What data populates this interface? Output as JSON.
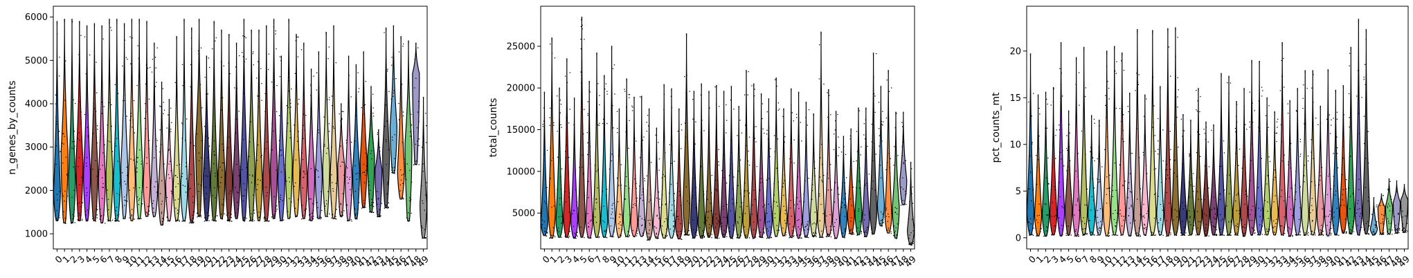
{
  "chart_data": [
    {
      "type": "violin",
      "ylabel": "n_genes_by_counts",
      "categories": [
        "0",
        "1",
        "2",
        "3",
        "4",
        "5",
        "6",
        "7",
        "8",
        "9",
        "10",
        "11",
        "12",
        "13",
        "14",
        "15",
        "16",
        "17",
        "18",
        "19",
        "20",
        "21",
        "22",
        "23",
        "24",
        "25",
        "26",
        "27",
        "28",
        "29",
        "30",
        "31",
        "32",
        "33",
        "34",
        "35",
        "36",
        "37",
        "38",
        "39",
        "40",
        "41",
        "42",
        "43",
        "44",
        "45",
        "46",
        "47",
        "48",
        "49"
      ],
      "ylim": [
        650,
        6250
      ],
      "yticks": [
        1000,
        2000,
        3000,
        4000,
        5000,
        6000
      ],
      "min": [
        1300,
        1250,
        1250,
        1300,
        1300,
        1300,
        1250,
        1300,
        1300,
        1350,
        1300,
        1350,
        1400,
        1400,
        1200,
        1300,
        1300,
        1300,
        1250,
        1400,
        1300,
        1300,
        1350,
        1300,
        1350,
        1300,
        1300,
        1300,
        1300,
        1350,
        1300,
        1350,
        1400,
        1350,
        1300,
        1350,
        1400,
        1350,
        1400,
        1300,
        1350,
        1600,
        1500,
        1400,
        1600,
        2400,
        1800,
        1300,
        2600,
        900
      ],
      "median": [
        2000,
        2900,
        2300,
        2700,
        2400,
        2500,
        2300,
        2400,
        2300,
        2600,
        2300,
        2500,
        2200,
        2100,
        2000,
        2200,
        2100,
        2100,
        2000,
        3200,
        2300,
        2300,
        2400,
        2300,
        2300,
        2500,
        2600,
        2300,
        2300,
        2600,
        2300,
        2700,
        2500,
        2300,
        2400,
        2400,
        2600,
        2400,
        2600,
        2300,
        2500,
        2700,
        2800,
        2500,
        2900,
        3500,
        2500,
        3100,
        4700,
        1700
      ],
      "max": [
        5900,
        5950,
        5950,
        5900,
        5800,
        5850,
        5800,
        5950,
        5950,
        5850,
        5950,
        5950,
        5900,
        5400,
        4500,
        4100,
        5550,
        5950,
        5750,
        5950,
        5100,
        5900,
        5700,
        5600,
        5400,
        5950,
        5700,
        5700,
        5800,
        5950,
        5100,
        5950,
        5600,
        5400,
        4800,
        5200,
        5650,
        5800,
        4000,
        5100,
        4900,
        5200,
        4400,
        3400,
        5750,
        5800,
        5550,
        5450,
        5400,
        4150
      ],
      "color": [
        "#1f77b4",
        "#ff7f0e",
        "#279e68",
        "#d62728",
        "#aa40fc",
        "#8c564b",
        "#e377c2",
        "#b5bd61",
        "#17becf",
        "#aec7e8",
        "#ffbb78",
        "#98df8a",
        "#ff9896",
        "#c5b0d5",
        "#c49c94",
        "#f7b6d2",
        "#dbdb8d",
        "#9edae5",
        "#ad494a",
        "#8c6d31",
        "#393b79",
        "#637939",
        "#8c6d31",
        "#843c39",
        "#7b4173",
        "#5254a3",
        "#8ca252",
        "#bd9e39",
        "#ad494a",
        "#a55194",
        "#6b6ecf",
        "#b5cf6b",
        "#e7ba52",
        "#d6616b",
        "#ce6dbd",
        "#9c9ede",
        "#cedb9c",
        "#e7cb94",
        "#e7969c",
        "#de9ed6",
        "#3182bd",
        "#e6550d",
        "#31a354",
        "#756bb1",
        "#636363",
        "#6baed6",
        "#fd8d3c",
        "#74c476",
        "#9e9ac8",
        "#969696"
      ]
    },
    {
      "type": "violin",
      "ylabel": "total_counts",
      "categories": [
        "0",
        "1",
        "2",
        "3",
        "4",
        "5",
        "6",
        "7",
        "8",
        "9",
        "10",
        "11",
        "12",
        "13",
        "14",
        "15",
        "16",
        "17",
        "18",
        "19",
        "20",
        "21",
        "22",
        "23",
        "24",
        "25",
        "26",
        "27",
        "28",
        "29",
        "30",
        "31",
        "32",
        "33",
        "34",
        "35",
        "36",
        "37",
        "38",
        "39",
        "40",
        "41",
        "42",
        "43",
        "44",
        "45",
        "46",
        "47",
        "48",
        "49"
      ],
      "ylim": [
        700,
        29800
      ],
      "yticks": [
        5000,
        10000,
        15000,
        20000,
        25000
      ],
      "min": [
        2300,
        2000,
        2100,
        2100,
        2000,
        2100,
        2000,
        2100,
        2100,
        2200,
        2100,
        2200,
        2200,
        2200,
        1800,
        2000,
        2000,
        2000,
        1900,
        2400,
        2000,
        2000,
        2100,
        2000,
        2100,
        2000,
        2000,
        2000,
        2000,
        2100,
        2000,
        2200,
        2300,
        2100,
        2000,
        2100,
        2200,
        2100,
        2200,
        2000,
        2100,
        2500,
        2400,
        2200,
        2500,
        3500,
        2600,
        2000,
        6000,
        1200
      ],
      "median": [
        4000,
        5500,
        4200,
        4700,
        4300,
        4600,
        4200,
        4500,
        4300,
        4700,
        4300,
        4500,
        4000,
        3800,
        3600,
        3900,
        3800,
        3800,
        3600,
        6500,
        4100,
        4100,
        4300,
        4100,
        4200,
        4500,
        4700,
        4200,
        4100,
        4700,
        4200,
        5000,
        4600,
        4200,
        4300,
        4400,
        4700,
        4400,
        4700,
        4200,
        4600,
        5000,
        5200,
        4500,
        5400,
        6200,
        4800,
        5800,
        9000,
        3000
      ],
      "max": [
        19500,
        26000,
        20000,
        23500,
        18800,
        28500,
        20800,
        24200,
        21500,
        25000,
        17500,
        21100,
        18900,
        19000,
        17500,
        15200,
        20400,
        19900,
        17500,
        26500,
        19600,
        20500,
        19600,
        20300,
        19600,
        20200,
        17800,
        22100,
        20500,
        19300,
        18700,
        21200,
        17500,
        19900,
        19500,
        18300,
        16900,
        26700,
        19800,
        17200,
        14200,
        15100,
        17600,
        17600,
        24200,
        20200,
        22100,
        17100,
        17100,
        11100
      ],
      "color": [
        "#1f77b4",
        "#ff7f0e",
        "#279e68",
        "#d62728",
        "#aa40fc",
        "#8c564b",
        "#e377c2",
        "#b5bd61",
        "#17becf",
        "#aec7e8",
        "#ffbb78",
        "#98df8a",
        "#ff9896",
        "#c5b0d5",
        "#c49c94",
        "#f7b6d2",
        "#dbdb8d",
        "#9edae5",
        "#ad494a",
        "#8c6d31",
        "#393b79",
        "#637939",
        "#8c6d31",
        "#843c39",
        "#7b4173",
        "#5254a3",
        "#8ca252",
        "#bd9e39",
        "#ad494a",
        "#a55194",
        "#6b6ecf",
        "#b5cf6b",
        "#e7ba52",
        "#d6616b",
        "#ce6dbd",
        "#9c9ede",
        "#cedb9c",
        "#e7cb94",
        "#e7969c",
        "#de9ed6",
        "#3182bd",
        "#e6550d",
        "#31a354",
        "#756bb1",
        "#636363",
        "#6baed6",
        "#fd8d3c",
        "#74c476",
        "#9e9ac8",
        "#969696"
      ]
    },
    {
      "type": "violin",
      "ylabel": "pct_counts_mt",
      "categories": [
        "0",
        "1",
        "2",
        "3",
        "4",
        "5",
        "6",
        "7",
        "8",
        "9",
        "10",
        "11",
        "12",
        "13",
        "14",
        "15",
        "16",
        "17",
        "18",
        "19",
        "20",
        "21",
        "22",
        "23",
        "24",
        "25",
        "26",
        "27",
        "28",
        "29",
        "30",
        "31",
        "32",
        "33",
        "34",
        "35",
        "36",
        "37",
        "38",
        "39",
        "40",
        "41",
        "42",
        "43",
        "44",
        "45",
        "46",
        "47",
        "48",
        "49"
      ],
      "ylim": [
        -1.2,
        24.8
      ],
      "yticks": [
        0,
        5,
        10,
        15,
        20
      ],
      "min": [
        0.3,
        0.2,
        0.2,
        0.3,
        0.2,
        0.3,
        0.2,
        0.3,
        0.3,
        0.3,
        0.2,
        0.3,
        0.3,
        0.2,
        0.2,
        0.3,
        0.3,
        0.3,
        0.2,
        0.3,
        0.3,
        0.3,
        0.3,
        0.2,
        0.3,
        0.3,
        0.3,
        0.3,
        0.2,
        0.3,
        0.3,
        0.3,
        0.3,
        0.3,
        0.2,
        0.3,
        0.3,
        0.3,
        0.3,
        0.2,
        0.3,
        0.5,
        0.4,
        0.3,
        0.4,
        0.3,
        0.4,
        0.4,
        0.5,
        0.6
      ],
      "median": [
        3.0,
        2.6,
        2.8,
        2.7,
        2.9,
        3.3,
        2.8,
        3.1,
        2.7,
        2.7,
        2.9,
        3.1,
        3.0,
        2.6,
        2.6,
        2.9,
        2.8,
        2.7,
        2.9,
        2.6,
        2.6,
        2.7,
        2.6,
        2.8,
        2.9,
        3.0,
        2.8,
        2.8,
        2.9,
        3.0,
        2.7,
        2.8,
        2.8,
        2.9,
        2.9,
        2.7,
        2.7,
        2.7,
        2.8,
        2.9,
        2.7,
        3.0,
        2.9,
        2.9,
        3.0,
        1.0,
        3.3,
        3.4,
        3.8,
        4.1
      ],
      "max": [
        19.7,
        15.3,
        15.6,
        16.1,
        20.9,
        13.6,
        19.3,
        20.4,
        13.1,
        12.6,
        20.0,
        20.5,
        19.8,
        15.5,
        22.3,
        15.3,
        22.2,
        16.2,
        22.4,
        22.5,
        13.2,
        12.6,
        16.0,
        12.4,
        12.1,
        17.6,
        17.3,
        14.6,
        16.0,
        19.0,
        18.9,
        15.0,
        13.5,
        20.9,
        14.7,
        16.0,
        17.9,
        17.9,
        14.1,
        18.0,
        15.8,
        16.3,
        20.4,
        23.4,
        22.3,
        4.3,
        4.7,
        6.3,
        6.1,
        5.7
      ],
      "color": [
        "#1f77b4",
        "#ff7f0e",
        "#279e68",
        "#d62728",
        "#aa40fc",
        "#8c564b",
        "#e377c2",
        "#b5bd61",
        "#17becf",
        "#aec7e8",
        "#ffbb78",
        "#98df8a",
        "#ff9896",
        "#c5b0d5",
        "#c49c94",
        "#f7b6d2",
        "#dbdb8d",
        "#9edae5",
        "#ad494a",
        "#8c6d31",
        "#393b79",
        "#637939",
        "#8c6d31",
        "#843c39",
        "#7b4173",
        "#5254a3",
        "#8ca252",
        "#bd9e39",
        "#ad494a",
        "#a55194",
        "#6b6ecf",
        "#b5cf6b",
        "#e7ba52",
        "#d6616b",
        "#ce6dbd",
        "#9c9ede",
        "#cedb9c",
        "#e7cb94",
        "#e7969c",
        "#de9ed6",
        "#3182bd",
        "#e6550d",
        "#31a354",
        "#756bb1",
        "#636363",
        "#6baed6",
        "#fd8d3c",
        "#74c476",
        "#9e9ac8",
        "#969696"
      ]
    }
  ]
}
